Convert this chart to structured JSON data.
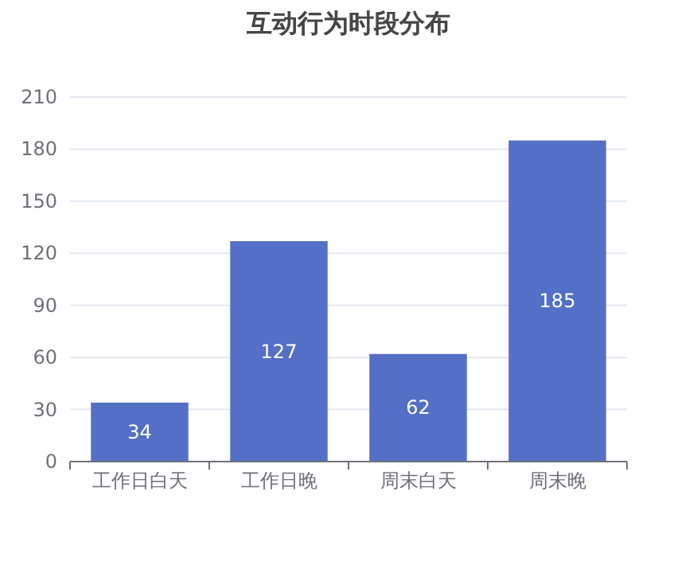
{
  "chart_data": {
    "type": "bar",
    "title": "互动行为时段分布",
    "categories": [
      "工作日白天",
      "工作日晚",
      "周末白天",
      "周末晚"
    ],
    "values": [
      34,
      127,
      62,
      185
    ],
    "color": "#5470c6",
    "ylim": [
      0,
      210
    ],
    "yticks": [
      0,
      30,
      60,
      90,
      120,
      150,
      180,
      210
    ],
    "grid": "y",
    "data_labels": true
  }
}
